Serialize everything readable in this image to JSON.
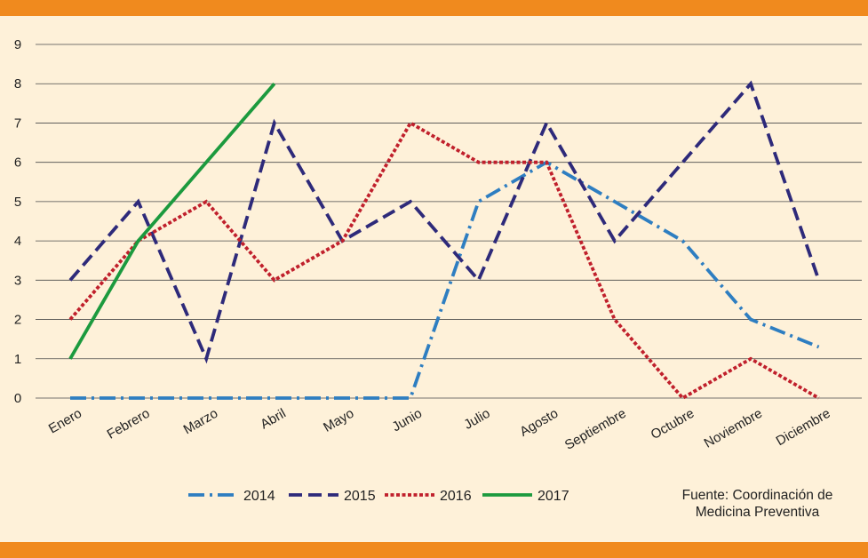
{
  "chart_data": {
    "type": "line",
    "categories": [
      "Enero",
      "Febrero",
      "Marzo",
      "Abril",
      "Mayo",
      "Junio",
      "Julio",
      "Agosto",
      "Septiembre",
      "Octubre",
      "Noviembre",
      "Diciembre"
    ],
    "ylim": [
      0,
      9
    ],
    "yticks": [
      0,
      1,
      2,
      3,
      4,
      5,
      6,
      7,
      8,
      9
    ],
    "grid": true,
    "legend_position": "bottom",
    "series": [
      {
        "name": "2014",
        "color": "#2e7ec1",
        "dash": "dashdot",
        "values": [
          0,
          0,
          0,
          0,
          0,
          0,
          5,
          6,
          5,
          4,
          2,
          1.3
        ]
      },
      {
        "name": "2015",
        "color": "#2e2a7a",
        "dash": "dashed",
        "values": [
          3,
          5,
          1,
          7,
          4,
          5,
          3,
          7,
          4,
          6,
          8,
          3
        ]
      },
      {
        "name": "2016",
        "color": "#c0202c",
        "dash": "dotted",
        "values": [
          2,
          4,
          5,
          3,
          4,
          7,
          6,
          6,
          2,
          0,
          1,
          0
        ]
      },
      {
        "name": "2017",
        "color": "#1c9a3e",
        "dash": "solid",
        "values": [
          1,
          4,
          6,
          8,
          null,
          null,
          null,
          null,
          null,
          null,
          null,
          null
        ]
      }
    ]
  },
  "source": {
    "line1": "Fuente: Coordinación de",
    "line2": "Medicina Preventiva"
  }
}
